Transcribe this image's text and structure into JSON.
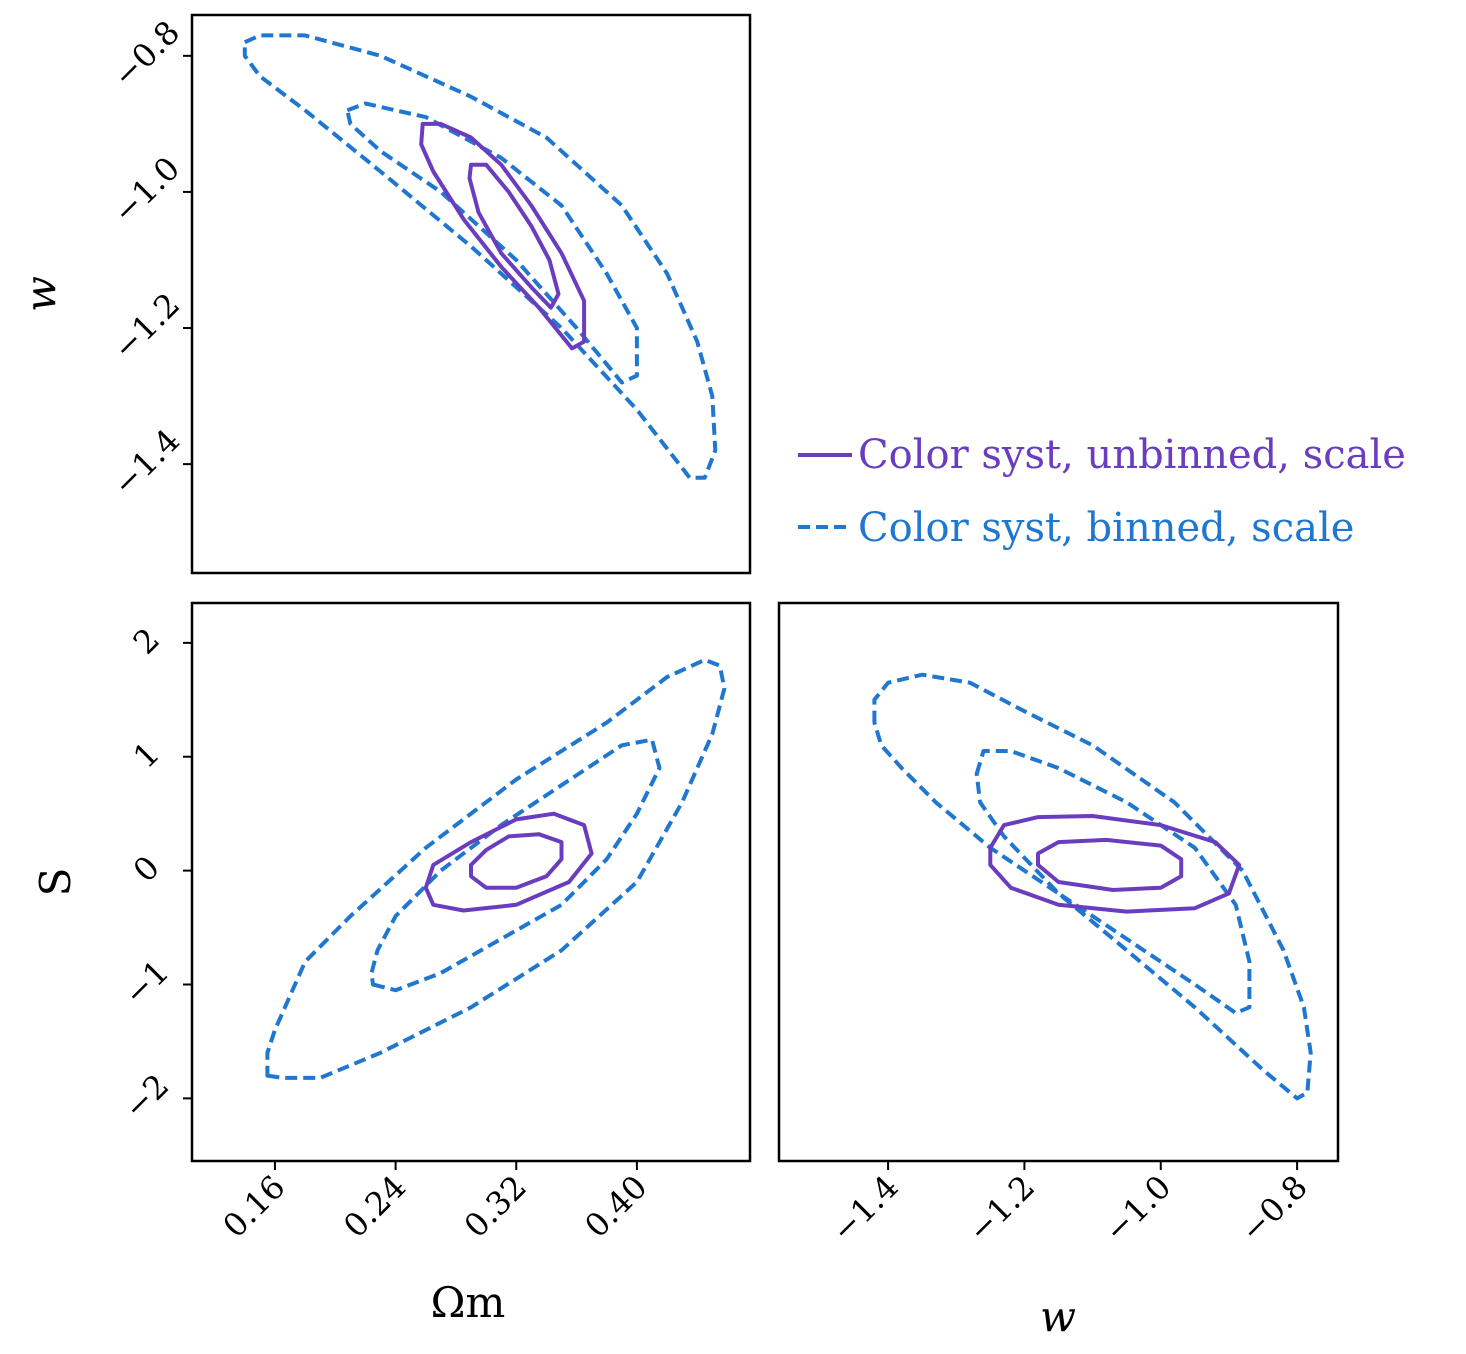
{
  "colors": {
    "unbinned": "#6a3dbf",
    "binned": "#1f77d0",
    "axes": "#000000",
    "background": "#ffffff"
  },
  "chart_data": {
    "type": "contour",
    "legend": {
      "placement": "right-middle",
      "entries": [
        {
          "label": "Color syst, unbinned, scale",
          "style": "solid",
          "color": "#6a3dbf"
        },
        {
          "label": "Color syst, binned, scale",
          "style": "dashed",
          "color": "#1f77d0"
        }
      ]
    },
    "panels": [
      {
        "id": "w_vs_Om",
        "xlabel": "",
        "ylabel": "w",
        "xlim": [
          0.105,
          0.475
        ],
        "ylim": [
          -1.56,
          -0.74
        ],
        "xticks": [],
        "yticks": [
          -0.8,
          -1.0,
          -1.2,
          -1.4
        ],
        "ytick_labels": [
          "−0.8",
          "−1.0",
          "−1.2",
          "−1.4"
        ],
        "contours": [
          {
            "series": "binned",
            "level": "outer",
            "points": [
              [
                0.14,
                -0.78
              ],
              [
                0.15,
                -0.77
              ],
              [
                0.18,
                -0.77
              ],
              [
                0.23,
                -0.8
              ],
              [
                0.29,
                -0.86
              ],
              [
                0.34,
                -0.92
              ],
              [
                0.39,
                -1.02
              ],
              [
                0.42,
                -1.12
              ],
              [
                0.44,
                -1.22
              ],
              [
                0.45,
                -1.3
              ],
              [
                0.452,
                -1.38
              ],
              [
                0.445,
                -1.42
              ],
              [
                0.435,
                -1.42
              ],
              [
                0.4,
                -1.32
              ],
              [
                0.35,
                -1.2
              ],
              [
                0.29,
                -1.08
              ],
              [
                0.23,
                -0.97
              ],
              [
                0.18,
                -0.88
              ],
              [
                0.15,
                -0.83
              ],
              [
                0.14,
                -0.8
              ]
            ]
          },
          {
            "series": "binned",
            "level": "inner",
            "points": [
              [
                0.208,
                -0.88
              ],
              [
                0.22,
                -0.87
              ],
              [
                0.26,
                -0.89
              ],
              [
                0.31,
                -0.95
              ],
              [
                0.35,
                -1.02
              ],
              [
                0.38,
                -1.12
              ],
              [
                0.4,
                -1.2
              ],
              [
                0.4,
                -1.27
              ],
              [
                0.39,
                -1.28
              ],
              [
                0.36,
                -1.2
              ],
              [
                0.32,
                -1.1
              ],
              [
                0.27,
                -1.0
              ],
              [
                0.23,
                -0.94
              ],
              [
                0.21,
                -0.9
              ]
            ]
          },
          {
            "series": "unbinned",
            "level": "outer",
            "points": [
              [
                0.258,
                -0.9
              ],
              [
                0.27,
                -0.9
              ],
              [
                0.29,
                -0.92
              ],
              [
                0.31,
                -0.96
              ],
              [
                0.33,
                -1.02
              ],
              [
                0.35,
                -1.09
              ],
              [
                0.365,
                -1.16
              ],
              [
                0.365,
                -1.22
              ],
              [
                0.357,
                -1.23
              ],
              [
                0.335,
                -1.17
              ],
              [
                0.31,
                -1.11
              ],
              [
                0.285,
                -1.04
              ],
              [
                0.265,
                -0.97
              ],
              [
                0.257,
                -0.93
              ]
            ]
          },
          {
            "series": "unbinned",
            "level": "inner",
            "points": [
              [
                0.29,
                -0.96
              ],
              [
                0.3,
                -0.96
              ],
              [
                0.315,
                -1.0
              ],
              [
                0.33,
                -1.05
              ],
              [
                0.342,
                -1.1
              ],
              [
                0.348,
                -1.15
              ],
              [
                0.343,
                -1.17
              ],
              [
                0.33,
                -1.14
              ],
              [
                0.31,
                -1.09
              ],
              [
                0.295,
                -1.03
              ],
              [
                0.289,
                -0.98
              ]
            ]
          }
        ]
      },
      {
        "id": "S_vs_Om",
        "xlabel": "Ωm",
        "ylabel": "S",
        "xlim": [
          0.105,
          0.475
        ],
        "ylim": [
          -2.55,
          2.35
        ],
        "xticks": [
          0.16,
          0.24,
          0.32,
          0.4
        ],
        "xtick_labels": [
          "0.16",
          "0.24",
          "0.32",
          "0.40"
        ],
        "yticks": [
          2,
          1,
          0,
          -1,
          -2
        ],
        "ytick_labels": [
          "2",
          "1",
          "0",
          "−1",
          "−2"
        ],
        "contours": [
          {
            "series": "binned",
            "level": "outer",
            "points": [
              [
                0.155,
                -1.8
              ],
              [
                0.165,
                -1.82
              ],
              [
                0.19,
                -1.82
              ],
              [
                0.23,
                -1.6
              ],
              [
                0.29,
                -1.2
              ],
              [
                0.35,
                -0.7
              ],
              [
                0.4,
                -0.1
              ],
              [
                0.43,
                0.6
              ],
              [
                0.45,
                1.2
              ],
              [
                0.458,
                1.6
              ],
              [
                0.455,
                1.8
              ],
              [
                0.445,
                1.85
              ],
              [
                0.42,
                1.7
              ],
              [
                0.38,
                1.3
              ],
              [
                0.32,
                0.8
              ],
              [
                0.26,
                0.2
              ],
              [
                0.21,
                -0.4
              ],
              [
                0.18,
                -0.8
              ],
              [
                0.17,
                -1.1
              ],
              [
                0.16,
                -1.4
              ],
              [
                0.155,
                -1.6
              ]
            ]
          },
          {
            "series": "binned",
            "level": "inner",
            "points": [
              [
                0.225,
                -1.0
              ],
              [
                0.24,
                -1.05
              ],
              [
                0.27,
                -0.9
              ],
              [
                0.31,
                -0.6
              ],
              [
                0.35,
                -0.3
              ],
              [
                0.38,
                0.1
              ],
              [
                0.4,
                0.5
              ],
              [
                0.415,
                0.9
              ],
              [
                0.41,
                1.15
              ],
              [
                0.39,
                1.1
              ],
              [
                0.35,
                0.75
              ],
              [
                0.31,
                0.4
              ],
              [
                0.27,
                0.0
              ],
              [
                0.24,
                -0.4
              ],
              [
                0.228,
                -0.7
              ],
              [
                0.224,
                -0.9
              ]
            ]
          },
          {
            "series": "unbinned",
            "level": "outer",
            "points": [
              [
                0.26,
                -0.15
              ],
              [
                0.265,
                -0.3
              ],
              [
                0.285,
                -0.35
              ],
              [
                0.32,
                -0.3
              ],
              [
                0.355,
                -0.1
              ],
              [
                0.37,
                0.15
              ],
              [
                0.365,
                0.4
              ],
              [
                0.345,
                0.5
              ],
              [
                0.32,
                0.45
              ],
              [
                0.29,
                0.25
              ],
              [
                0.265,
                0.05
              ]
            ]
          },
          {
            "series": "unbinned",
            "level": "inner",
            "points": [
              [
                0.29,
                -0.05
              ],
              [
                0.3,
                -0.15
              ],
              [
                0.32,
                -0.15
              ],
              [
                0.34,
                -0.05
              ],
              [
                0.35,
                0.1
              ],
              [
                0.35,
                0.25
              ],
              [
                0.335,
                0.32
              ],
              [
                0.315,
                0.3
              ],
              [
                0.3,
                0.18
              ],
              [
                0.29,
                0.05
              ]
            ]
          }
        ]
      },
      {
        "id": "S_vs_w",
        "xlabel": "w",
        "ylabel": "",
        "xlim": [
          -1.56,
          -0.74
        ],
        "ylim": [
          -2.55,
          2.35
        ],
        "xticks": [
          -1.4,
          -1.2,
          -1.0,
          -0.8
        ],
        "xtick_labels": [
          "−1.4",
          "−1.2",
          "−1.0",
          "−0.8"
        ],
        "yticks": [],
        "contours": [
          {
            "series": "binned",
            "level": "outer",
            "points": [
              [
                -1.42,
                1.3
              ],
              [
                -1.42,
                1.5
              ],
              [
                -1.4,
                1.65
              ],
              [
                -1.35,
                1.72
              ],
              [
                -1.28,
                1.65
              ],
              [
                -1.2,
                1.4
              ],
              [
                -1.1,
                1.1
              ],
              [
                -0.98,
                0.6
              ],
              [
                -0.88,
                0.0
              ],
              [
                -0.82,
                -0.7
              ],
              [
                -0.79,
                -1.2
              ],
              [
                -0.78,
                -1.6
              ],
              [
                -0.785,
                -1.95
              ],
              [
                -0.8,
                -2.0
              ],
              [
                -0.85,
                -1.75
              ],
              [
                -0.95,
                -1.2
              ],
              [
                -1.05,
                -0.7
              ],
              [
                -1.15,
                -0.2
              ],
              [
                -1.25,
                0.2
              ],
              [
                -1.33,
                0.6
              ],
              [
                -1.38,
                0.9
              ],
              [
                -1.41,
                1.1
              ]
            ]
          },
          {
            "series": "binned",
            "level": "inner",
            "points": [
              [
                -1.27,
                0.85
              ],
              [
                -1.26,
                1.05
              ],
              [
                -1.22,
                1.05
              ],
              [
                -1.15,
                0.9
              ],
              [
                -1.05,
                0.6
              ],
              [
                -0.95,
                0.2
              ],
              [
                -0.89,
                -0.3
              ],
              [
                -0.87,
                -0.8
              ],
              [
                -0.87,
                -1.2
              ],
              [
                -0.89,
                -1.25
              ],
              [
                -0.95,
                -1.0
              ],
              [
                -1.05,
                -0.6
              ],
              [
                -1.15,
                -0.2
              ],
              [
                -1.23,
                0.3
              ],
              [
                -1.265,
                0.6
              ]
            ]
          },
          {
            "series": "unbinned",
            "level": "outer",
            "points": [
              [
                -1.25,
                0.2
              ],
              [
                -1.23,
                0.4
              ],
              [
                -1.18,
                0.47
              ],
              [
                -1.1,
                0.48
              ],
              [
                -1.0,
                0.4
              ],
              [
                -0.92,
                0.25
              ],
              [
                -0.885,
                0.05
              ],
              [
                -0.9,
                -0.2
              ],
              [
                -0.95,
                -0.33
              ],
              [
                -1.05,
                -0.36
              ],
              [
                -1.15,
                -0.3
              ],
              [
                -1.22,
                -0.15
              ],
              [
                -1.25,
                0.05
              ]
            ]
          },
          {
            "series": "unbinned",
            "level": "inner",
            "points": [
              [
                -1.18,
                0.15
              ],
              [
                -1.15,
                0.25
              ],
              [
                -1.08,
                0.27
              ],
              [
                -1.0,
                0.22
              ],
              [
                -0.97,
                0.1
              ],
              [
                -0.97,
                -0.05
              ],
              [
                -1.0,
                -0.15
              ],
              [
                -1.07,
                -0.17
              ],
              [
                -1.15,
                -0.1
              ],
              [
                -1.18,
                0.05
              ]
            ]
          }
        ]
      }
    ]
  }
}
